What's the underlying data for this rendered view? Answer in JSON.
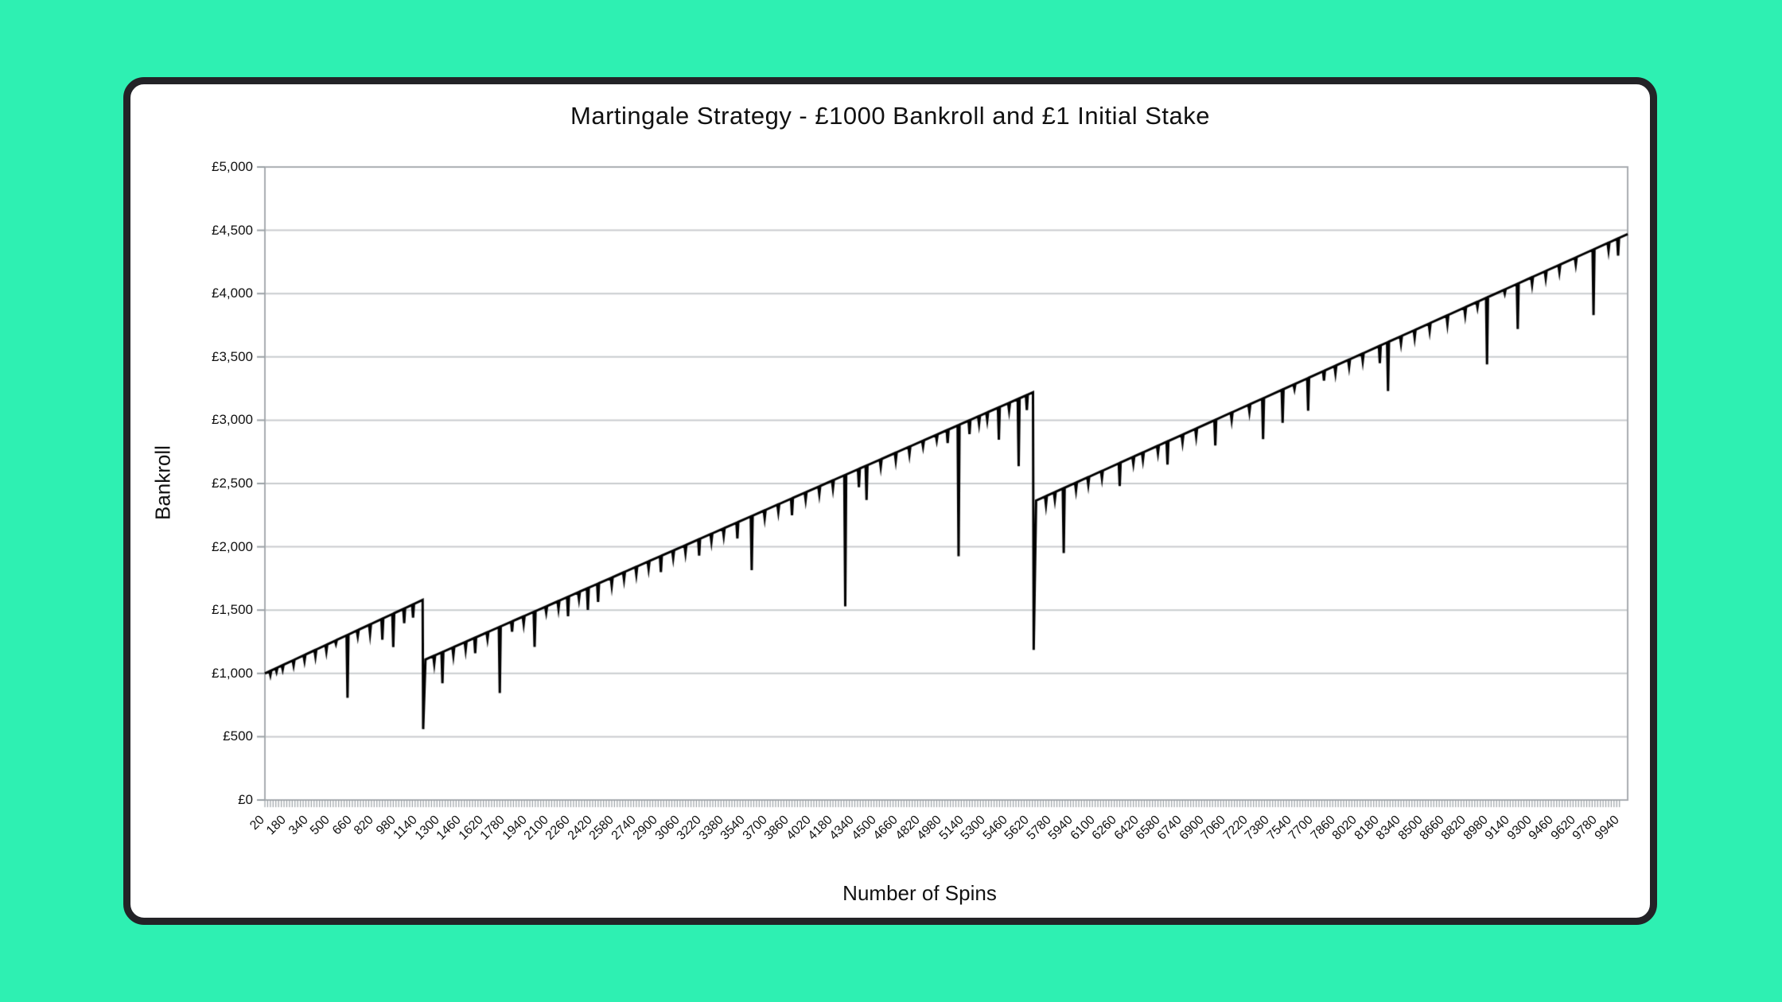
{
  "page": {
    "background_color": "#2EF0B2",
    "card_background": "#ffffff",
    "card_border_color": "#232327"
  },
  "chart_data": {
    "type": "line",
    "title": "Martingale Strategy - £1000 Bankroll and £1 Initial Stake",
    "xlabel": "Number of Spins",
    "ylabel": "Bankroll",
    "legend": "none",
    "grid": "horizontal",
    "x_range": [
      20,
      10000
    ],
    "y_range": [
      0,
      5000
    ],
    "x_tick_interval": 160,
    "x_minor_tick_interval": 20,
    "x_tick_labels": [
      20,
      180,
      340,
      500,
      660,
      820,
      980,
      1140,
      1300,
      1460,
      1620,
      1780,
      1940,
      2100,
      2260,
      2420,
      2580,
      2740,
      2900,
      3060,
      3220,
      3380,
      3540,
      3700,
      3860,
      4020,
      4180,
      4340,
      4500,
      4660,
      4820,
      4980,
      5140,
      5300,
      5460,
      5620,
      5780,
      5940,
      6100,
      6260,
      6420,
      6580,
      6740,
      6900,
      7060,
      7220,
      7380,
      7540,
      7700,
      7860,
      8020,
      8180,
      8340,
      8500,
      8660,
      8820,
      8980,
      9140,
      9300,
      9460,
      9620,
      9780,
      9940
    ],
    "y_tick_values": [
      0,
      500,
      1000,
      1500,
      2000,
      2500,
      3000,
      3500,
      4000,
      4500,
      5000
    ],
    "y_tick_labels": [
      "£0",
      "£500",
      "£1,000",
      "£1,500",
      "£2,000",
      "£2,500",
      "£3,000",
      "£3,500",
      "£4,000",
      "£4,500",
      "£5,000"
    ],
    "line_color": "#000000",
    "line_width": 3,
    "gridline_color": "#c8cbce",
    "axis_color": "#a8acb0",
    "tick_color": "#9aa0a5",
    "busts": [
      {
        "at_spin": 1180,
        "peak": 1580,
        "low": 560,
        "resume": 1110
      },
      {
        "at_spin": 5650,
        "peak": 3220,
        "low": 1185,
        "resume": 2365
      }
    ],
    "series": [
      {
        "name": "Bankroll",
        "trend_anchors": [
          [
            20,
            1000
          ],
          [
            1175,
            1580
          ],
          [
            1179,
            560
          ],
          [
            1196,
            1110
          ],
          [
            5645,
            3220
          ],
          [
            5650,
            1185
          ],
          [
            5668,
            2365
          ],
          [
            10000,
            4470
          ]
        ],
        "spike_half_width_spins": 7,
        "drawdown_spikes": [
          [
            60,
            985
          ],
          [
            105,
            1012
          ],
          [
            150,
            1030
          ],
          [
            230,
            1062
          ],
          [
            310,
            1098
          ],
          [
            390,
            1132
          ],
          [
            470,
            1172
          ],
          [
            540,
            1232
          ],
          [
            625,
            808
          ],
          [
            700,
            1292
          ],
          [
            790,
            1312
          ],
          [
            880,
            1266
          ],
          [
            960,
            1208
          ],
          [
            1040,
            1396
          ],
          [
            1105,
            1440
          ],
          [
            1260,
            1075
          ],
          [
            1320,
            922
          ],
          [
            1400,
            1140
          ],
          [
            1490,
            1185
          ],
          [
            1560,
            1160
          ],
          [
            1650,
            1270
          ],
          [
            1740,
            845
          ],
          [
            1830,
            1330
          ],
          [
            1915,
            1390
          ],
          [
            1995,
            1210
          ],
          [
            2080,
            1480
          ],
          [
            2170,
            1510
          ],
          [
            2240,
            1452
          ],
          [
            2320,
            1585
          ],
          [
            2385,
            1502
          ],
          [
            2460,
            1565
          ],
          [
            2560,
            1690
          ],
          [
            2650,
            1740
          ],
          [
            2740,
            1780
          ],
          [
            2830,
            1825
          ],
          [
            2920,
            1800
          ],
          [
            3010,
            1910
          ],
          [
            3100,
            1950
          ],
          [
            3200,
            1930
          ],
          [
            3290,
            2040
          ],
          [
            3380,
            2085
          ],
          [
            3480,
            2065
          ],
          [
            3585,
            1815
          ],
          [
            3680,
            2225
          ],
          [
            3780,
            2275
          ],
          [
            3880,
            2250
          ],
          [
            3980,
            2370
          ],
          [
            4080,
            2415
          ],
          [
            4180,
            2460
          ],
          [
            4270,
            1530
          ],
          [
            4370,
            2470
          ],
          [
            4426,
            2370
          ],
          [
            4530,
            2630
          ],
          [
            4640,
            2680
          ],
          [
            4740,
            2730
          ],
          [
            4840,
            2790
          ],
          [
            4940,
            2840
          ],
          [
            5020,
            2820
          ],
          [
            5100,
            1925
          ],
          [
            5180,
            2890
          ],
          [
            5250,
            2970
          ],
          [
            5310,
            3000
          ],
          [
            5395,
            2845
          ],
          [
            5470,
            3075
          ],
          [
            5540,
            2637
          ],
          [
            5600,
            3080
          ],
          [
            5740,
            2330
          ],
          [
            5805,
            2370
          ],
          [
            5870,
            1950
          ],
          [
            5960,
            2445
          ],
          [
            6050,
            2490
          ],
          [
            6150,
            2540
          ],
          [
            6280,
            2480
          ],
          [
            6380,
            2655
          ],
          [
            6450,
            2685
          ],
          [
            6560,
            2740
          ],
          [
            6630,
            2650
          ],
          [
            6740,
            2825
          ],
          [
            6840,
            2870
          ],
          [
            6980,
            2800
          ],
          [
            7100,
            3000
          ],
          [
            7230,
            3065
          ],
          [
            7330,
            2850
          ],
          [
            7473,
            2980
          ],
          [
            7560,
            3245
          ],
          [
            7660,
            3075
          ],
          [
            7776,
            3313
          ],
          [
            7860,
            3370
          ],
          [
            7960,
            3420
          ],
          [
            8060,
            3465
          ],
          [
            8185,
            3450
          ],
          [
            8245,
            3230
          ],
          [
            8340,
            3605
          ],
          [
            8440,
            3650
          ],
          [
            8550,
            3705
          ],
          [
            8680,
            3760
          ],
          [
            8810,
            3830
          ],
          [
            8900,
            3890
          ],
          [
            8970,
            3440
          ],
          [
            9100,
            4000
          ],
          [
            9195,
            3720
          ],
          [
            9300,
            4070
          ],
          [
            9400,
            4120
          ],
          [
            9500,
            4170
          ],
          [
            9620,
            4230
          ],
          [
            9750,
            3830
          ],
          [
            9860,
            4340
          ],
          [
            9930,
            4300
          ]
        ]
      }
    ]
  }
}
